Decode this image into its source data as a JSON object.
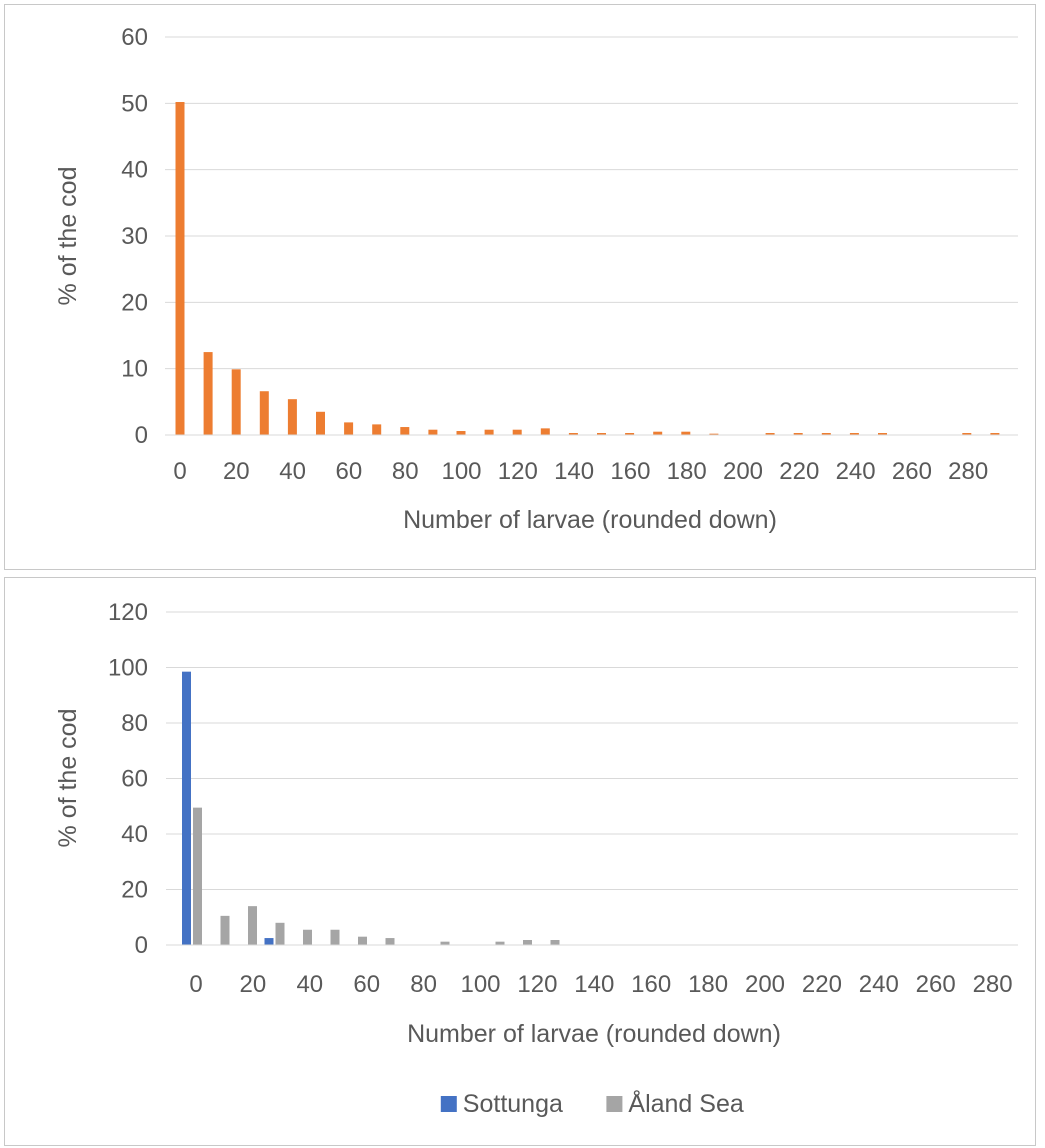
{
  "chart_data": [
    {
      "type": "bar",
      "xlabel": "Number of larvae (rounded down)",
      "ylabel": "% of the cod",
      "ylim": [
        0,
        60
      ],
      "y_ticks": [
        0,
        10,
        20,
        30,
        40,
        50,
        60
      ],
      "x_tick_labels": [
        "0",
        "20",
        "40",
        "60",
        "80",
        "100",
        "120",
        "140",
        "160",
        "180",
        "200",
        "220",
        "240",
        "260",
        "280"
      ],
      "grid": true,
      "colors": [
        "#ED7D31"
      ],
      "categories": [
        0,
        10,
        20,
        30,
        40,
        50,
        60,
        70,
        80,
        90,
        100,
        110,
        120,
        130,
        140,
        150,
        160,
        170,
        180,
        190,
        200,
        210,
        220,
        230,
        240,
        250,
        260,
        270,
        280,
        290
      ],
      "series": [
        {
          "values": [
            50.2,
            12.5,
            9.9,
            6.6,
            5.4,
            3.5,
            1.9,
            1.6,
            1.2,
            0.8,
            0.6,
            0.8,
            0.8,
            1.0,
            0.3,
            0.3,
            0.3,
            0.5,
            0.5,
            0.2,
            0,
            0.3,
            0.3,
            0.3,
            0.3,
            0.3,
            0,
            0,
            0.3,
            0.3
          ]
        }
      ]
    },
    {
      "type": "bar",
      "xlabel": "Number of larvae (rounded down)",
      "ylabel": "% of the cod",
      "ylim": [
        0,
        120
      ],
      "y_ticks": [
        0,
        20,
        40,
        60,
        80,
        100,
        120
      ],
      "x_tick_labels": [
        "0",
        "20",
        "40",
        "60",
        "80",
        "100",
        "120",
        "140",
        "160",
        "180",
        "200",
        "220",
        "240",
        "260",
        "280"
      ],
      "grid": true,
      "legend": "bottom",
      "colors": [
        "#4472C4",
        "#A5A5A5"
      ],
      "categories": [
        0,
        10,
        20,
        30,
        40,
        50,
        60,
        70,
        80,
        90,
        100,
        110,
        120,
        130,
        140,
        150,
        160,
        170,
        180,
        190,
        200,
        210,
        220,
        230,
        240,
        250,
        260,
        270,
        280,
        290
      ],
      "series": [
        {
          "name": "Sottunga",
          "values": [
            98.5,
            0,
            0,
            2.5,
            0,
            0,
            0,
            0,
            0,
            0,
            0,
            0,
            0,
            0,
            0,
            0,
            0,
            0,
            0,
            0,
            0,
            0,
            0,
            0,
            0,
            0,
            0,
            0,
            0,
            0
          ]
        },
        {
          "name": "Åland Sea",
          "values": [
            49.5,
            10.5,
            14,
            8,
            5.5,
            5.5,
            3,
            2.5,
            0,
            1.2,
            0,
            1.2,
            1.8,
            1.8,
            0,
            0,
            0,
            0,
            0,
            0,
            0,
            0,
            0,
            0,
            0,
            0,
            0,
            0,
            0,
            0
          ]
        }
      ]
    }
  ]
}
